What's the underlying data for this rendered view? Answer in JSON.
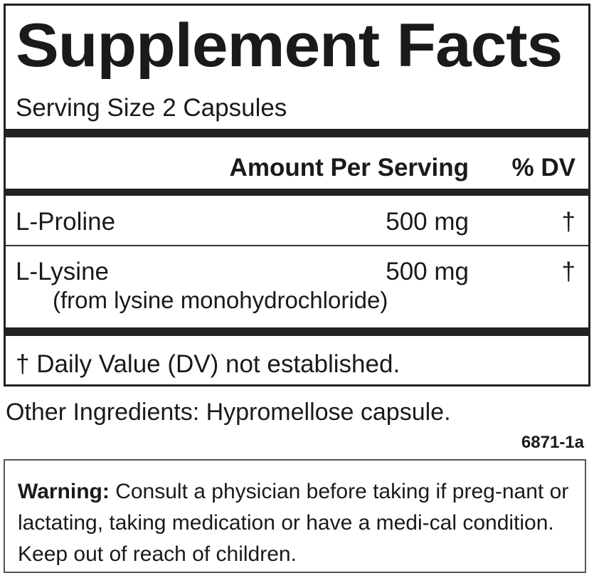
{
  "title": "Supplement Facts",
  "serving_size": "Serving Size 2 Capsules",
  "header": {
    "amount": "Amount Per Serving",
    "dv": "% DV"
  },
  "rows": [
    {
      "name": "L-Proline",
      "amount": "500 mg",
      "dv": "†"
    },
    {
      "name": "L-Lysine",
      "amount": "500 mg",
      "dv": "†",
      "sub": "(from lysine monohydrochloride)"
    }
  ],
  "footnote": "† Daily Value (DV) not established.",
  "other_ingredients": "Other Ingredients: Hypromellose capsule.",
  "code": "6871-1a",
  "warning": {
    "label": "Warning:",
    "text": " Consult a physician before taking if preg-nant or lactating, taking medication or have a medi-cal condition. Keep out of reach of children."
  }
}
